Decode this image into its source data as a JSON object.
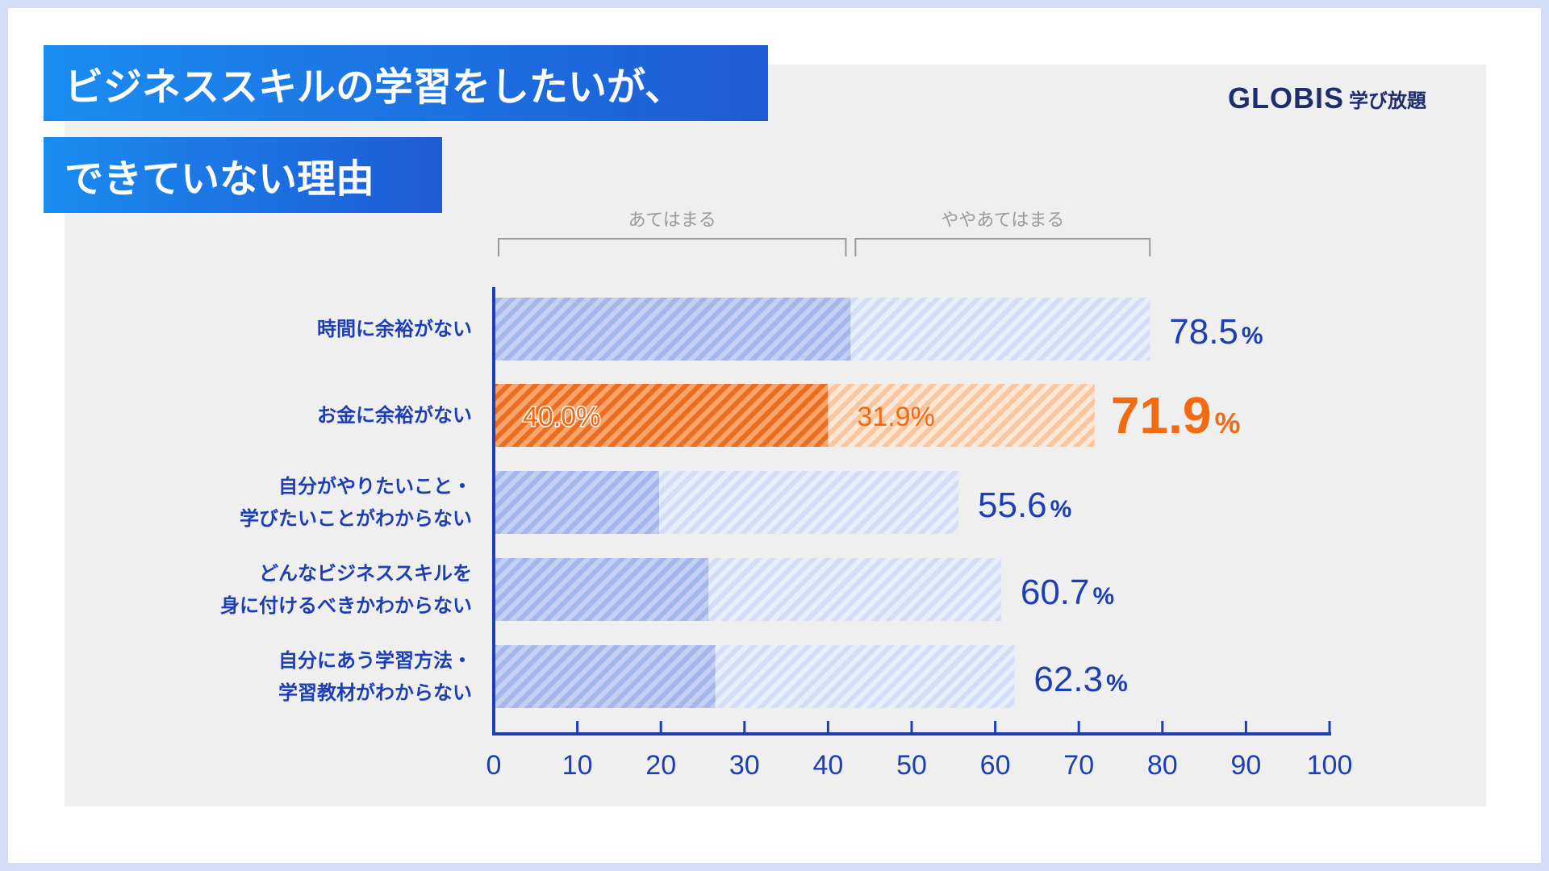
{
  "title": {
    "line1": "ビジネススキルの学習をしたいが、",
    "line2": "できていない理由"
  },
  "brand": {
    "name": "GLOBIS",
    "sub": "学び放題"
  },
  "colors": {
    "blue_dark": "#aebfee",
    "blue_light": "#dde5f8",
    "orange_dark": "#f07a35",
    "orange_light": "#fbd3b6",
    "blue_text": "#1d3fb3",
    "orange_text": "#f26a12",
    "axis": "#1d3fb3",
    "bracket": "#9a9a9a"
  },
  "chart_data": {
    "type": "bar",
    "orientation": "horizontal",
    "stacked": true,
    "categories": [
      "時間に余裕がない",
      "お金に余裕がない",
      "自分がやりたいこと・学びたいことがわからない",
      "どんなビジネススキルを身に付けるべきかわからない",
      "自分にあう学習方法・学習教材がわからない"
    ],
    "category_lines": [
      [
        "時間に余裕がない"
      ],
      [
        "お金に余裕がない"
      ],
      [
        "自分がやりたいこと・",
        "学びたいことがわからない"
      ],
      [
        "どんなビジネススキルを",
        "身に付けるべきかわからない"
      ],
      [
        "自分にあう学習方法・",
        "学習教材がわからない"
      ]
    ],
    "series": [
      {
        "name": "あてはまる",
        "values": [
          42.7,
          40.0,
          19.8,
          25.7,
          26.5
        ]
      },
      {
        "name": "ややあてはまる",
        "values": [
          35.8,
          31.9,
          35.8,
          35.0,
          35.8
        ]
      }
    ],
    "totals": [
      78.5,
      71.9,
      55.6,
      60.7,
      62.3
    ],
    "total_labels": [
      "78.5",
      "71.9",
      "55.6",
      "60.7",
      "62.3"
    ],
    "percent_sign": "%",
    "highlight_index": 1,
    "segment_labels": {
      "index": 1,
      "values": [
        "40.0%",
        "31.9%"
      ]
    },
    "legend_brackets": [
      "あてはまる",
      "ややあてはまる"
    ],
    "xlim": [
      0,
      100
    ],
    "xticks": [
      "0",
      "10",
      "20",
      "30",
      "40",
      "50",
      "60",
      "70",
      "80",
      "90",
      "100"
    ]
  }
}
